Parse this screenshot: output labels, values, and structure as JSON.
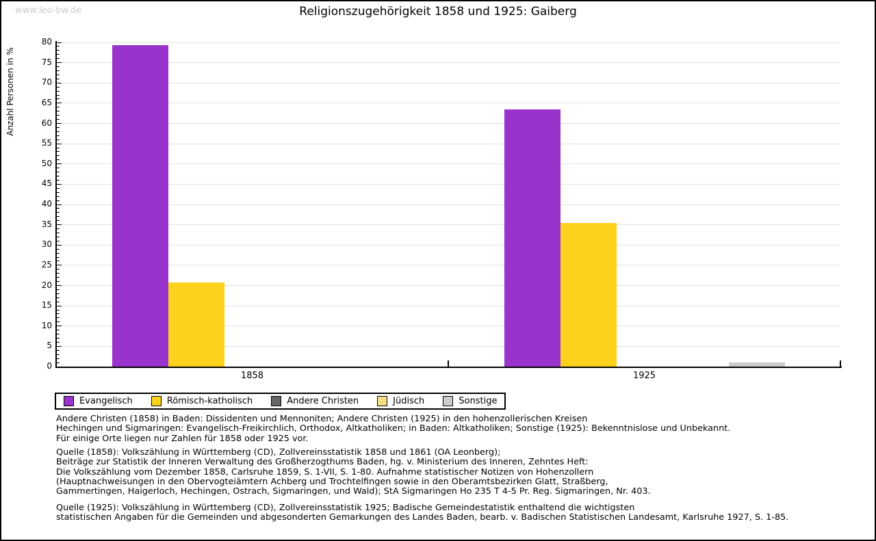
{
  "watermark": "www.leo-bw.de",
  "chart_data": {
    "type": "bar",
    "title": "Religionszugehörigkeit 1858 und 1925: Gaiberg",
    "xlabel": "",
    "ylabel": "Anzahl Personen in %",
    "ylim": [
      0,
      80
    ],
    "ytick_step": 5,
    "grid": true,
    "legend_position": "bottom",
    "categories": [
      "1858",
      "1925"
    ],
    "series": [
      {
        "name": "Evangelisch",
        "color": "#9933cc",
        "values": [
          79.4,
          63.5
        ]
      },
      {
        "name": "Römisch-katholisch",
        "color": "#fcd21d",
        "values": [
          20.8,
          35.5
        ]
      },
      {
        "name": "Andere Christen",
        "color": "#666666",
        "values": [
          0,
          0
        ]
      },
      {
        "name": "Jüdisch",
        "color": "#f5df87",
        "values": [
          0,
          0
        ]
      },
      {
        "name": "Sonstige",
        "color": "#cccccc",
        "values": [
          0,
          1
        ]
      }
    ]
  },
  "notes": {
    "definitions": "Andere Christen (1858) in Baden: Dissidenten und Mennoniten; Andere Christen (1925) in den hohenzollerischen Kreisen\nHechingen und Sigmaringen: Evangelisch-Freikirchlich, Orthodox, Altkatholiken; in Baden: Altkatholiken; Sonstige (1925): Bekenntnislose und Unbekannt.\nFür einige Orte liegen nur Zahlen für 1858 oder 1925 vor.",
    "source_1858": "Quelle (1858): Volkszählung in Württemberg (CD), Zollvereinsstatistik 1858 und 1861 (OA Leonberg);\nBeiträge zur Statistik der Inneren Verwaltung des Großherzogthums Baden, hg. v. Ministerium des Inneren, Zehntes Heft:\nDie Volkszählung vom Dezember 1858, Carlsruhe 1859, S. 1-VII, S. 1-80. Aufnahme statistischer Notizen von Hohenzollern\n(Hauptnachweisungen in den Obervogteiämtern Achberg und Trochtelfingen sowie in den Oberamtsbezirken Glatt, Straßberg,\nGammertingen, Haigerloch, Hechingen, Ostrach, Sigmaringen, und Wald); StA Sigmaringen Ho 235 T 4-5 Pr. Reg. Sigmaringen, Nr. 403.",
    "source_1925": "Quelle (1925): Volkszählung in Württemberg (CD), Zollvereinsstatistik 1925; Badische Gemeindestatistik enthaltend die wichtigsten\nstatistischen Angaben für die Gemeinden und abgesonderten Gemarkungen des Landes Baden, bearb. v. Badischen Statistischen Landesamt, Karlsruhe 1927, S. 1-85."
  }
}
